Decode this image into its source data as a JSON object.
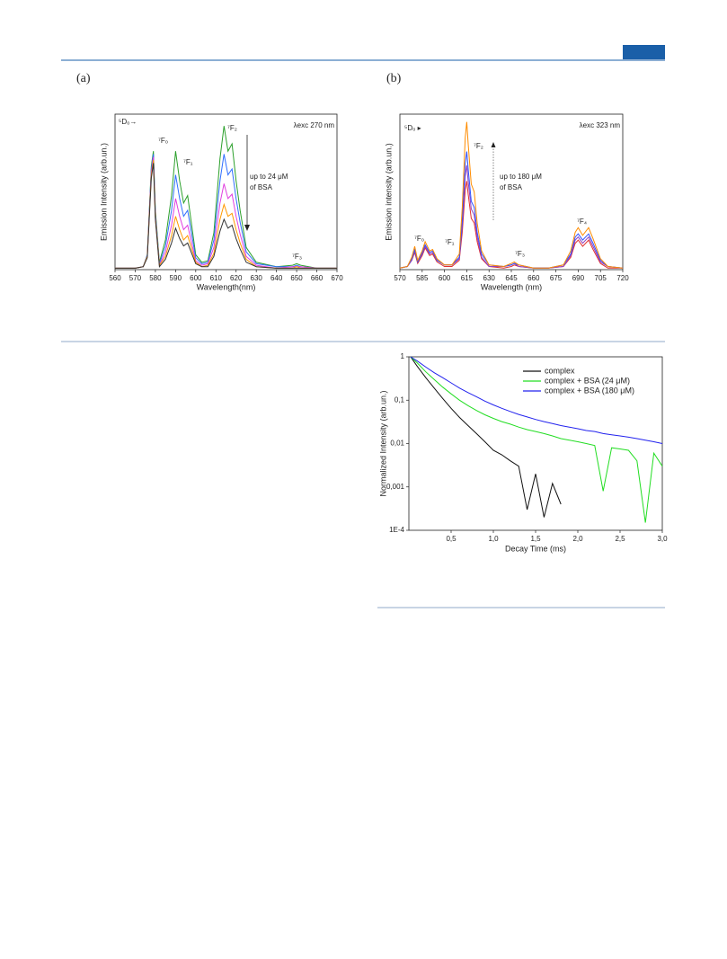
{
  "panel_labels": [
    "(a)",
    "(b)"
  ],
  "chart_data": [
    {
      "type": "line",
      "x_label": "Wavelength(nm)",
      "y_label": "Emission Intensity (arb.un.)",
      "xlim": [
        560,
        670
      ],
      "xticks": [
        560,
        570,
        580,
        590,
        600,
        610,
        620,
        630,
        640,
        650,
        660,
        670
      ],
      "ylim": [
        0,
        1.05
      ],
      "annotations": [
        "⁵D₀→",
        "⁷F₀",
        "⁷F₁",
        "⁷F₂",
        "⁷F₃",
        "λexc 270 nm",
        "up to 24 μM",
        "of BSA"
      ],
      "x": [
        560,
        565,
        570,
        574,
        576,
        578,
        579,
        580,
        582,
        585,
        588,
        590,
        592,
        594,
        596,
        598,
        600,
        603,
        606,
        609,
        612,
        614,
        616,
        618,
        620,
        622,
        625,
        630,
        640,
        648,
        650,
        652,
        660,
        670
      ],
      "series": [
        {
          "color": "#2ca02c",
          "values": [
            0.01,
            0.01,
            0.01,
            0.02,
            0.1,
            0.7,
            0.8,
            0.4,
            0.05,
            0.2,
            0.5,
            0.8,
            0.6,
            0.45,
            0.5,
            0.3,
            0.1,
            0.05,
            0.06,
            0.25,
            0.75,
            0.97,
            0.8,
            0.85,
            0.6,
            0.4,
            0.15,
            0.05,
            0.02,
            0.03,
            0.04,
            0.03,
            0.01,
            0.01
          ]
        },
        {
          "color": "#2f6fff",
          "values": [
            0.01,
            0.01,
            0.01,
            0.02,
            0.1,
            0.68,
            0.78,
            0.38,
            0.04,
            0.16,
            0.4,
            0.64,
            0.48,
            0.36,
            0.4,
            0.24,
            0.08,
            0.04,
            0.05,
            0.2,
            0.6,
            0.78,
            0.64,
            0.68,
            0.48,
            0.32,
            0.12,
            0.04,
            0.02,
            0.02,
            0.03,
            0.02,
            0.01,
            0.01
          ]
        },
        {
          "color": "#e040e0",
          "values": [
            0.01,
            0.01,
            0.01,
            0.02,
            0.09,
            0.66,
            0.76,
            0.36,
            0.03,
            0.12,
            0.3,
            0.48,
            0.36,
            0.27,
            0.3,
            0.18,
            0.06,
            0.03,
            0.04,
            0.15,
            0.45,
            0.58,
            0.48,
            0.51,
            0.36,
            0.24,
            0.09,
            0.03,
            0.01,
            0.02,
            0.02,
            0.02,
            0.01,
            0.01
          ]
        },
        {
          "color": "#ff9900",
          "values": [
            0.01,
            0.01,
            0.01,
            0.02,
            0.09,
            0.64,
            0.74,
            0.35,
            0.03,
            0.09,
            0.23,
            0.36,
            0.27,
            0.2,
            0.23,
            0.14,
            0.05,
            0.02,
            0.03,
            0.11,
            0.34,
            0.44,
            0.36,
            0.38,
            0.27,
            0.18,
            0.07,
            0.02,
            0.01,
            0.01,
            0.02,
            0.01,
            0.01,
            0.01
          ]
        },
        {
          "color": "#333333",
          "values": [
            0.01,
            0.01,
            0.01,
            0.02,
            0.08,
            0.62,
            0.72,
            0.34,
            0.02,
            0.07,
            0.18,
            0.28,
            0.21,
            0.16,
            0.18,
            0.11,
            0.04,
            0.02,
            0.02,
            0.09,
            0.26,
            0.34,
            0.28,
            0.3,
            0.21,
            0.14,
            0.05,
            0.02,
            0.01,
            0.01,
            0.01,
            0.01,
            0.01,
            0.01
          ]
        }
      ]
    },
    {
      "type": "line",
      "x_label": "Wavelength (nm)",
      "y_label": "Emission intensity (arb.un.)",
      "xlim": [
        570,
        720
      ],
      "xticks": [
        570,
        585,
        600,
        615,
        630,
        645,
        660,
        675,
        690,
        705,
        720
      ],
      "ylim": [
        0,
        1.0
      ],
      "annotations": [
        "⁵D₀ ▸",
        "⁷F₀",
        "⁷F₁",
        "⁷F₂",
        "⁷F₃",
        "⁷F₄",
        "λexc 323 nm",
        "up to 180 μM",
        "of BSA"
      ],
      "x": [
        570,
        575,
        578,
        580,
        582,
        585,
        587,
        590,
        592,
        595,
        600,
        605,
        610,
        612,
        614,
        615,
        616,
        618,
        620,
        622,
        625,
        630,
        640,
        645,
        647,
        650,
        660,
        670,
        680,
        685,
        688,
        690,
        693,
        697,
        700,
        705,
        710,
        720
      ],
      "series": [
        {
          "color": "#e03030",
          "values": [
            0.01,
            0.02,
            0.06,
            0.11,
            0.04,
            0.09,
            0.14,
            0.09,
            0.1,
            0.05,
            0.02,
            0.02,
            0.06,
            0.24,
            0.51,
            0.57,
            0.48,
            0.33,
            0.3,
            0.18,
            0.07,
            0.02,
            0.01,
            0.02,
            0.03,
            0.02,
            0.01,
            0.01,
            0.02,
            0.08,
            0.17,
            0.19,
            0.15,
            0.19,
            0.13,
            0.04,
            0.01,
            0.01
          ]
        },
        {
          "color": "#9040c0",
          "values": [
            0.01,
            0.02,
            0.06,
            0.12,
            0.05,
            0.1,
            0.15,
            0.1,
            0.11,
            0.06,
            0.03,
            0.03,
            0.07,
            0.28,
            0.6,
            0.67,
            0.56,
            0.39,
            0.35,
            0.21,
            0.08,
            0.02,
            0.02,
            0.03,
            0.04,
            0.02,
            0.01,
            0.01,
            0.02,
            0.09,
            0.19,
            0.21,
            0.17,
            0.21,
            0.15,
            0.05,
            0.02,
            0.01
          ]
        },
        {
          "color": "#3050ff",
          "values": [
            0.01,
            0.02,
            0.07,
            0.13,
            0.05,
            0.11,
            0.16,
            0.11,
            0.12,
            0.06,
            0.03,
            0.03,
            0.08,
            0.32,
            0.68,
            0.76,
            0.64,
            0.44,
            0.4,
            0.24,
            0.1,
            0.03,
            0.02,
            0.03,
            0.04,
            0.03,
            0.01,
            0.01,
            0.03,
            0.1,
            0.21,
            0.23,
            0.19,
            0.23,
            0.17,
            0.06,
            0.02,
            0.01
          ]
        },
        {
          "color": "#ff8c00",
          "values": [
            0.01,
            0.02,
            0.08,
            0.15,
            0.06,
            0.12,
            0.18,
            0.12,
            0.13,
            0.07,
            0.03,
            0.03,
            0.1,
            0.4,
            0.85,
            0.95,
            0.8,
            0.55,
            0.5,
            0.3,
            0.12,
            0.03,
            0.02,
            0.04,
            0.05,
            0.03,
            0.01,
            0.01,
            0.03,
            0.12,
            0.24,
            0.27,
            0.22,
            0.27,
            0.2,
            0.07,
            0.02,
            0.01
          ]
        }
      ]
    },
    {
      "type": "line",
      "x_label": "Decay Time (ms)",
      "y_label": "Normalized Intensity (arb.un.)",
      "log_y": true,
      "xlim": [
        0,
        3.0
      ],
      "xticks": [
        {
          "value": 0.5,
          "label": "0,5"
        },
        {
          "value": 1.0,
          "label": "1,0"
        },
        {
          "value": 1.5,
          "label": "1,5"
        },
        {
          "value": 2.0,
          "label": "2,0"
        },
        {
          "value": 2.5,
          "label": "2,5"
        },
        {
          "value": 3.0,
          "label": "3,0"
        }
      ],
      "ylim": [
        0.0001,
        1
      ],
      "yticks": [
        {
          "value": 0.0001,
          "label": "1E-4"
        },
        {
          "value": 0.001,
          "label": "0,001"
        },
        {
          "value": 0.01,
          "label": "0,01"
        },
        {
          "value": 0.1,
          "label": "0,1"
        },
        1
      ],
      "legend": "top-right",
      "x": [
        0.02,
        0.1,
        0.2,
        0.3,
        0.4,
        0.5,
        0.6,
        0.7,
        0.8,
        0.9,
        1.0,
        1.1,
        1.2,
        1.3,
        1.4,
        1.5,
        1.6,
        1.7,
        1.8,
        1.9,
        2.0,
        2.1,
        2.2,
        2.3,
        2.4,
        2.5,
        2.6,
        2.7,
        2.8,
        2.9,
        3.0
      ],
      "series": [
        {
          "name": "complex",
          "color": "#111111",
          "values": [
            1,
            0.6,
            0.33,
            0.19,
            0.11,
            0.065,
            0.04,
            0.026,
            0.017,
            0.011,
            0.007,
            0.0055,
            0.004,
            0.003,
            0.0003,
            0.002,
            0.0002,
            0.0012,
            0.0004,
            null,
            null,
            null,
            null,
            null,
            null,
            null,
            null,
            null,
            null,
            null,
            null
          ]
        },
        {
          "name": "complex + BSA (24 μM)",
          "color": "#22dd22",
          "values": [
            1,
            0.72,
            0.45,
            0.3,
            0.2,
            0.14,
            0.1,
            0.075,
            0.058,
            0.046,
            0.038,
            0.032,
            0.028,
            0.024,
            0.021,
            0.019,
            0.017,
            0.015,
            0.013,
            0.012,
            0.011,
            0.01,
            0.009,
            0.0008,
            0.008,
            0.0075,
            0.007,
            0.004,
            0.00015,
            0.006,
            0.003
          ]
        },
        {
          "name": "complex + BSA (180 μM)",
          "color": "#2222ee",
          "values": [
            1,
            0.8,
            0.58,
            0.43,
            0.33,
            0.25,
            0.19,
            0.15,
            0.12,
            0.095,
            0.078,
            0.065,
            0.055,
            0.047,
            0.041,
            0.036,
            0.032,
            0.029,
            0.026,
            0.024,
            0.022,
            0.02,
            0.019,
            0.017,
            0.016,
            0.015,
            0.014,
            0.013,
            0.012,
            0.011,
            0.01
          ]
        }
      ]
    }
  ]
}
